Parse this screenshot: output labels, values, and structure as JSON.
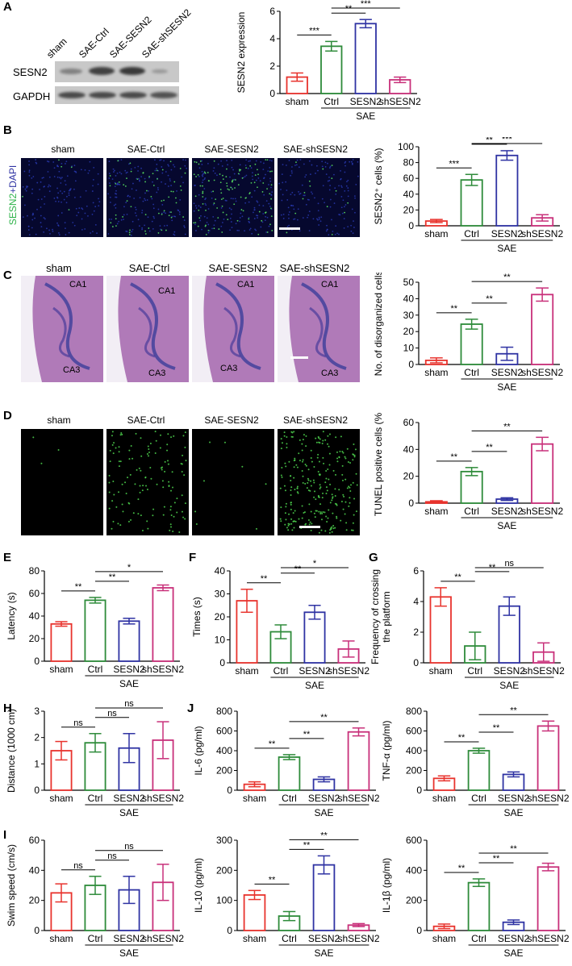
{
  "panels": {
    "A": {
      "letter": "A",
      "lanes": [
        "sham",
        "SAE-Ctrl",
        "SAE-SESN2",
        "SAE-shSESN2"
      ],
      "rows": [
        "SESN2",
        "GAPDH"
      ],
      "blot_intensity": {
        "SESN2": [
          0.35,
          0.8,
          0.85,
          0.2
        ],
        "GAPDH": [
          0.8,
          0.8,
          0.8,
          0.8
        ]
      }
    },
    "B": {
      "letter": "B",
      "stain_label_green": "SESN2",
      "stain_label_blue": "+DAPI",
      "image_labels": [
        "sham",
        "SAE-Ctrl",
        "SAE-SESN2",
        "SAE-shSESN2"
      ]
    },
    "C": {
      "letter": "C",
      "image_labels": [
        "sham",
        "SAE-Ctrl",
        "SAE-SESN2",
        "SAE-shSESN2"
      ],
      "region_labels": [
        "CA1",
        "CA3"
      ]
    },
    "D": {
      "letter": "D",
      "image_labels": [
        "sham",
        "SAE-Ctrl",
        "SAE-SESN2",
        "SAE-shSESN2"
      ]
    },
    "E": {
      "letter": "E"
    },
    "F": {
      "letter": "F"
    },
    "G": {
      "letter": "G"
    },
    "H": {
      "letter": "H"
    },
    "I": {
      "letter": "I"
    },
    "J": {
      "letter": "J"
    }
  },
  "colors": {
    "sham": "#e8332d",
    "Ctrl": "#2e8b3a",
    "SESN2": "#2f33a3",
    "shSESN2": "#c8307a"
  },
  "chart_data": [
    {
      "id": "A",
      "type": "bar",
      "categories": [
        "sham",
        "Ctrl",
        "SESN2",
        "shSESN2"
      ],
      "group_label": "SAE",
      "values": [
        1.2,
        3.45,
        5.1,
        1.0
      ],
      "errors": [
        0.3,
        0.35,
        0.3,
        0.2
      ],
      "ylabel": "SESN2 expression",
      "ylim": [
        0,
        6
      ],
      "yticks": [
        0,
        2,
        4,
        6
      ],
      "sig": [
        {
          "from": 0,
          "to": 1,
          "label": "***"
        },
        {
          "from": 1,
          "to": 2,
          "label": "**"
        },
        {
          "from": 1,
          "to": 3,
          "label": "***"
        }
      ]
    },
    {
      "id": "B",
      "type": "bar",
      "categories": [
        "sham",
        "Ctrl",
        "SESN2",
        "shSESN2"
      ],
      "group_label": "SAE",
      "values": [
        6,
        58,
        89,
        10
      ],
      "errors": [
        2,
        7,
        6,
        4
      ],
      "ylabel": "SESN2⁺ cells (%)",
      "ylim": [
        0,
        100
      ],
      "yticks": [
        0,
        20,
        40,
        60,
        80,
        100
      ],
      "sig": [
        {
          "from": 0,
          "to": 1,
          "label": "***"
        },
        {
          "from": 1,
          "to": 2,
          "label": "**"
        },
        {
          "from": 1,
          "to": 3,
          "label": "***"
        }
      ]
    },
    {
      "id": "C",
      "type": "bar",
      "categories": [
        "sham",
        "Ctrl",
        "SESN2",
        "shSESN2"
      ],
      "group_label": "SAE",
      "values": [
        2.5,
        24.5,
        6.5,
        42.5
      ],
      "errors": [
        1.5,
        3,
        4,
        4
      ],
      "ylabel": "No. of disorganized cells",
      "ylim": [
        0,
        50
      ],
      "yticks": [
        0,
        10,
        20,
        30,
        40,
        50
      ],
      "sig": [
        {
          "from": 0,
          "to": 1,
          "label": "**"
        },
        {
          "from": 1,
          "to": 2,
          "label": "**"
        },
        {
          "from": 1,
          "to": 3,
          "label": "**"
        }
      ]
    },
    {
      "id": "D",
      "type": "bar",
      "categories": [
        "sham",
        "Ctrl",
        "SESN2",
        "shSESN2"
      ],
      "group_label": "SAE",
      "values": [
        1,
        23.5,
        3,
        44
      ],
      "errors": [
        0.8,
        3,
        1,
        5
      ],
      "ylabel": "TUNEL positive cells (%)",
      "ylim": [
        0,
        60
      ],
      "yticks": [
        0,
        20,
        40,
        60
      ],
      "sig": [
        {
          "from": 0,
          "to": 1,
          "label": "**"
        },
        {
          "from": 1,
          "to": 2,
          "label": "**"
        },
        {
          "from": 1,
          "to": 3,
          "label": "**"
        }
      ]
    },
    {
      "id": "E",
      "type": "bar",
      "categories": [
        "sham",
        "Ctrl",
        "SESN2",
        "shSESN2"
      ],
      "group_label": "SAE",
      "values": [
        33,
        54,
        35.5,
        65
      ],
      "errors": [
        2,
        2.5,
        2.5,
        2.5
      ],
      "ylabel": "Latency (s)",
      "ylim": [
        0,
        80
      ],
      "yticks": [
        0,
        20,
        40,
        60,
        80
      ],
      "sig": [
        {
          "from": 0,
          "to": 1,
          "label": "**"
        },
        {
          "from": 1,
          "to": 2,
          "label": "**"
        },
        {
          "from": 1,
          "to": 3,
          "label": "*"
        }
      ]
    },
    {
      "id": "F",
      "type": "bar",
      "categories": [
        "sham",
        "Ctrl",
        "SESN2",
        "shSESN2"
      ],
      "group_label": "SAE",
      "values": [
        27,
        13.5,
        22,
        6
      ],
      "errors": [
        5,
        3,
        3,
        3.5
      ],
      "ylabel": "Times (s)",
      "ylim": [
        0,
        40
      ],
      "yticks": [
        0,
        10,
        20,
        30,
        40
      ],
      "sig": [
        {
          "from": 0,
          "to": 1,
          "label": "**"
        },
        {
          "from": 1,
          "to": 2,
          "label": "**"
        },
        {
          "from": 1,
          "to": 3,
          "label": "*"
        }
      ]
    },
    {
      "id": "G",
      "type": "bar",
      "categories": [
        "sham",
        "Ctrl",
        "SESN2",
        "shSESN2"
      ],
      "group_label": "SAE",
      "values": [
        4.3,
        1.1,
        3.7,
        0.7
      ],
      "errors": [
        0.6,
        0.9,
        0.6,
        0.6
      ],
      "ylabel": "Frequency of crossing|the platform",
      "ylim": [
        0,
        6
      ],
      "yticks": [
        0,
        2,
        4,
        6
      ],
      "sig": [
        {
          "from": 0,
          "to": 1,
          "label": "**"
        },
        {
          "from": 1,
          "to": 2,
          "label": "**"
        },
        {
          "from": 1,
          "to": 3,
          "label": "ns"
        }
      ]
    },
    {
      "id": "H",
      "type": "bar",
      "categories": [
        "sham",
        "Ctrl",
        "SESN2",
        "shSESN2"
      ],
      "group_label": "SAE",
      "values": [
        1.5,
        1.8,
        1.6,
        1.9
      ],
      "errors": [
        0.35,
        0.35,
        0.55,
        0.7
      ],
      "ylabel": "Distance (1000 cm)",
      "ylim": [
        0,
        3
      ],
      "yticks": [
        0,
        1,
        2,
        3
      ],
      "sig": [
        {
          "from": 0,
          "to": 1,
          "label": "ns"
        },
        {
          "from": 1,
          "to": 2,
          "label": "ns"
        },
        {
          "from": 1,
          "to": 3,
          "label": "ns"
        }
      ]
    },
    {
      "id": "I",
      "type": "bar",
      "categories": [
        "sham",
        "Ctrl",
        "SESN2",
        "shSESN2"
      ],
      "group_label": "SAE",
      "values": [
        25,
        30,
        27,
        32
      ],
      "errors": [
        6,
        6,
        9,
        12
      ],
      "ylabel": "Swim speed (cm/s)",
      "ylim": [
        0,
        60
      ],
      "yticks": [
        0,
        20,
        40,
        60
      ],
      "sig": [
        {
          "from": 0,
          "to": 1,
          "label": "ns"
        },
        {
          "from": 1,
          "to": 2,
          "label": "ns"
        },
        {
          "from": 1,
          "to": 3,
          "label": "ns"
        }
      ]
    },
    {
      "id": "J1",
      "type": "bar",
      "categories": [
        "sham",
        "Ctrl",
        "SESN2",
        "shSESN2"
      ],
      "group_label": "SAE",
      "values": [
        60,
        335,
        110,
        590
      ],
      "errors": [
        25,
        25,
        25,
        40
      ],
      "ylabel": "IL-6 (pg/ml)",
      "ylim": [
        0,
        800
      ],
      "yticks": [
        0,
        200,
        400,
        600,
        800
      ],
      "sig": [
        {
          "from": 0,
          "to": 1,
          "label": "**"
        },
        {
          "from": 1,
          "to": 2,
          "label": "**"
        },
        {
          "from": 1,
          "to": 3,
          "label": "**"
        }
      ]
    },
    {
      "id": "J2",
      "type": "bar",
      "categories": [
        "sham",
        "Ctrl",
        "SESN2",
        "shSESN2"
      ],
      "group_label": "SAE",
      "values": [
        120,
        400,
        160,
        650
      ],
      "errors": [
        25,
        25,
        25,
        50
      ],
      "ylabel": "TNF-α (pg/ml)",
      "ylim": [
        0,
        800
      ],
      "yticks": [
        0,
        200,
        400,
        600,
        800
      ],
      "sig": [
        {
          "from": 0,
          "to": 1,
          "label": "**"
        },
        {
          "from": 1,
          "to": 2,
          "label": "**"
        },
        {
          "from": 1,
          "to": 3,
          "label": "**"
        }
      ]
    },
    {
      "id": "J3",
      "type": "bar",
      "categories": [
        "sham",
        "Ctrl",
        "SESN2",
        "shSESN2"
      ],
      "group_label": "SAE",
      "values": [
        118,
        48,
        218,
        18
      ],
      "errors": [
        15,
        15,
        30,
        5
      ],
      "ylabel": "IL-10 (pg/ml)",
      "ylim": [
        0,
        300
      ],
      "yticks": [
        0,
        100,
        200,
        300
      ],
      "sig": [
        {
          "from": 0,
          "to": 1,
          "label": "**"
        },
        {
          "from": 1,
          "to": 2,
          "label": "**"
        },
        {
          "from": 1,
          "to": 3,
          "label": "**"
        }
      ]
    },
    {
      "id": "J4",
      "type": "bar",
      "categories": [
        "sham",
        "Ctrl",
        "SESN2",
        "shSESN2"
      ],
      "group_label": "SAE",
      "values": [
        28,
        318,
        55,
        422
      ],
      "errors": [
        15,
        25,
        15,
        25
      ],
      "ylabel": "IL-1β (pg/ml)",
      "ylim": [
        0,
        600
      ],
      "yticks": [
        0,
        200,
        400,
        600
      ],
      "sig": [
        {
          "from": 0,
          "to": 1,
          "label": "**"
        },
        {
          "from": 1,
          "to": 2,
          "label": "**"
        },
        {
          "from": 1,
          "to": 3,
          "label": "**"
        }
      ]
    }
  ]
}
